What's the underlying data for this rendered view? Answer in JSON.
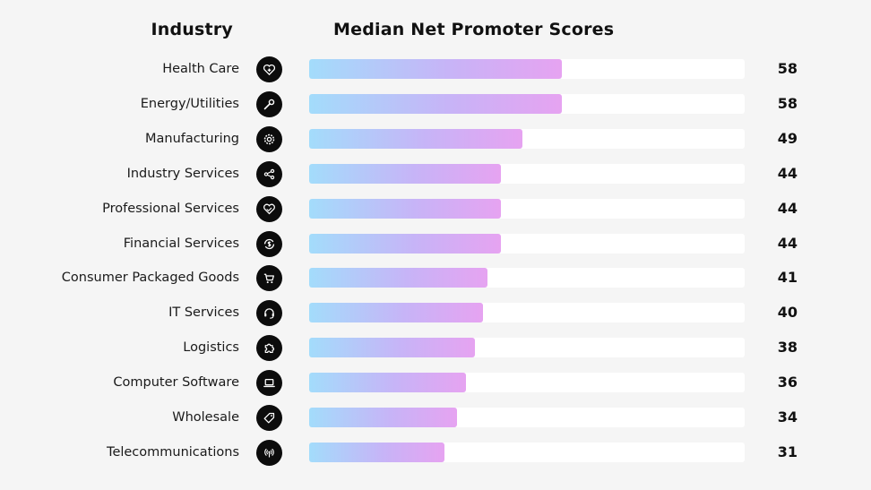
{
  "headers": {
    "industry": "Industry",
    "chart_title": "Median Net Promoter Scores"
  },
  "icons": [
    "heart-plus-icon",
    "wrench-icon",
    "gear-icon",
    "share-nodes-icon",
    "handshake-heart-icon",
    "dollar-cycle-icon",
    "shopping-cart-icon",
    "headset-icon",
    "puzzle-icon",
    "laptop-icon",
    "price-tag-icon",
    "broadcast-icon"
  ],
  "chart_data": {
    "type": "bar",
    "title": "Median Net Promoter Scores",
    "xlabel": "",
    "ylabel": "Industry",
    "orientation": "horizontal",
    "xlim": [
      0,
      100
    ],
    "grid": false,
    "categories": [
      "Health Care",
      "Energy/Utilities",
      "Manufacturing",
      "Industry Services",
      "Professional Services",
      "Financial Services",
      "Consumer Packaged Goods",
      "IT Services",
      "Logistics",
      "Computer Software",
      "Wholesale",
      "Telecommunications"
    ],
    "values": [
      58,
      58,
      49,
      44,
      44,
      44,
      41,
      40,
      38,
      36,
      34,
      31
    ],
    "colors": {
      "gradient_start": "#a3dcfb",
      "gradient_end": "#e6a3f1",
      "track": "#ffffff"
    }
  }
}
